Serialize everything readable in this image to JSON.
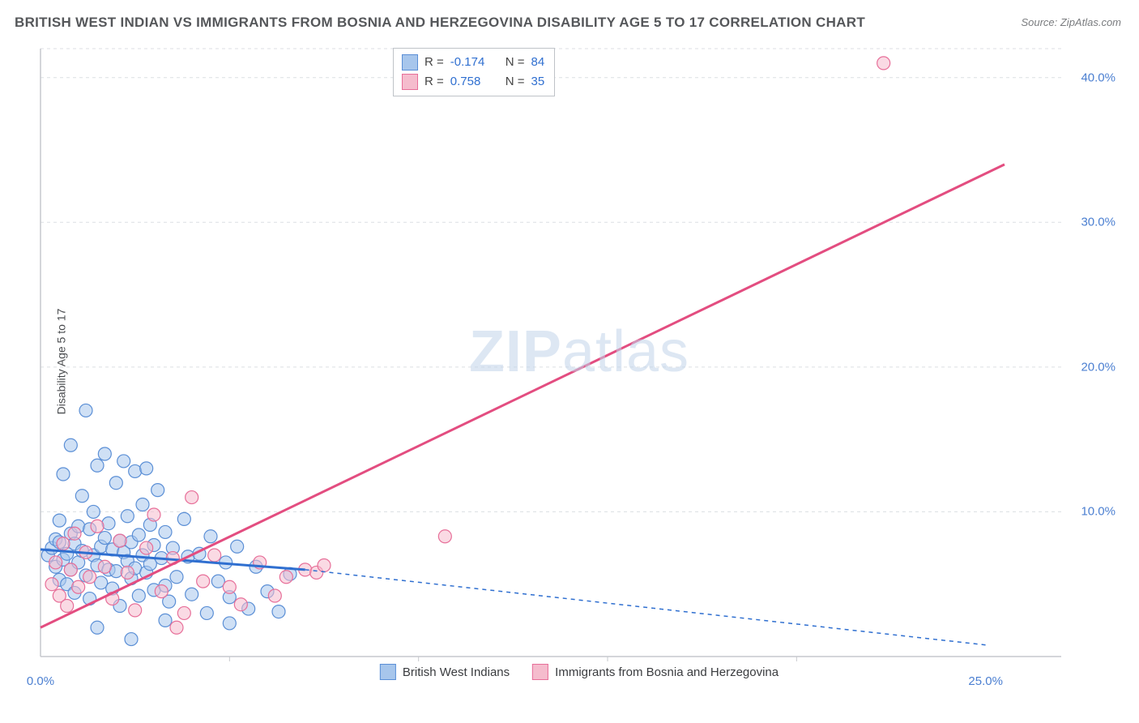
{
  "title": "BRITISH WEST INDIAN VS IMMIGRANTS FROM BOSNIA AND HERZEGOVINA DISABILITY AGE 5 TO 17 CORRELATION CHART",
  "source": "Source: ZipAtlas.com",
  "yaxis_label": "Disability Age 5 to 17",
  "watermark_a": "ZIP",
  "watermark_b": "atlas",
  "chart": {
    "type": "scatter",
    "xlim": [
      0,
      27
    ],
    "ylim": [
      0,
      42
    ],
    "xtick_positions": [
      0,
      25
    ],
    "xtick_labels": [
      "0.0%",
      "25.0%"
    ],
    "ytick_positions": [
      10,
      20,
      30,
      40
    ],
    "ytick_labels": [
      "10.0%",
      "20.0%",
      "30.0%",
      "40.0%"
    ],
    "xtick_minor": [
      5,
      10,
      15,
      20
    ],
    "background_color": "#ffffff",
    "grid_color": "#dcdfe3",
    "axis_color": "#c6c9cd",
    "marker_radius": 8,
    "marker_opacity": 0.55,
    "series": [
      {
        "name": "British West Indians",
        "label": "British West Indians",
        "color_fill": "#a7c6ec",
        "color_stroke": "#5b8fd6",
        "R": "-0.174",
        "N": "84",
        "trend": {
          "x1": 0,
          "y1": 7.4,
          "x2": 7,
          "y2": 6.0,
          "extend_x2": 25,
          "extend_y2": 0.8,
          "color": "#2f6fd0",
          "width": 3,
          "dash_extend": "5,5"
        },
        "points": [
          [
            0.2,
            7.0
          ],
          [
            0.3,
            7.5
          ],
          [
            0.4,
            6.2
          ],
          [
            0.4,
            8.1
          ],
          [
            0.5,
            9.4
          ],
          [
            0.5,
            5.3
          ],
          [
            0.5,
            7.9
          ],
          [
            0.6,
            6.7
          ],
          [
            0.6,
            12.6
          ],
          [
            0.7,
            7.1
          ],
          [
            0.7,
            5.0
          ],
          [
            0.8,
            8.5
          ],
          [
            0.8,
            6.0
          ],
          [
            0.8,
            14.6
          ],
          [
            0.9,
            7.8
          ],
          [
            0.9,
            4.4
          ],
          [
            1.0,
            9.0
          ],
          [
            1.0,
            6.5
          ],
          [
            1.1,
            11.1
          ],
          [
            1.1,
            7.3
          ],
          [
            1.2,
            17.0
          ],
          [
            1.2,
            5.6
          ],
          [
            1.3,
            8.8
          ],
          [
            1.3,
            4.0
          ],
          [
            1.4,
            7.0
          ],
          [
            1.4,
            10.0
          ],
          [
            1.5,
            6.3
          ],
          [
            1.5,
            13.2
          ],
          [
            1.6,
            7.6
          ],
          [
            1.6,
            5.1
          ],
          [
            1.7,
            8.2
          ],
          [
            1.7,
            14.0
          ],
          [
            1.8,
            6.0
          ],
          [
            1.8,
            9.2
          ],
          [
            1.9,
            4.7
          ],
          [
            1.9,
            7.4
          ],
          [
            2.0,
            12.0
          ],
          [
            2.0,
            5.9
          ],
          [
            2.1,
            8.0
          ],
          [
            2.1,
            3.5
          ],
          [
            2.2,
            7.2
          ],
          [
            2.2,
            13.5
          ],
          [
            2.3,
            6.6
          ],
          [
            2.3,
            9.7
          ],
          [
            2.4,
            5.4
          ],
          [
            2.4,
            7.9
          ],
          [
            2.5,
            12.8
          ],
          [
            2.5,
            6.1
          ],
          [
            2.6,
            8.4
          ],
          [
            2.6,
            4.2
          ],
          [
            2.7,
            10.5
          ],
          [
            2.7,
            7.0
          ],
          [
            2.8,
            5.8
          ],
          [
            2.8,
            13.0
          ],
          [
            2.9,
            6.4
          ],
          [
            2.9,
            9.1
          ],
          [
            3.0,
            4.6
          ],
          [
            3.0,
            7.7
          ],
          [
            3.1,
            11.5
          ],
          [
            3.2,
            6.8
          ],
          [
            3.3,
            4.9
          ],
          [
            3.3,
            8.6
          ],
          [
            3.4,
            3.8
          ],
          [
            3.5,
            7.5
          ],
          [
            3.6,
            5.5
          ],
          [
            3.8,
            9.5
          ],
          [
            3.9,
            6.9
          ],
          [
            4.0,
            4.3
          ],
          [
            4.2,
            7.1
          ],
          [
            4.4,
            3.0
          ],
          [
            4.5,
            8.3
          ],
          [
            4.7,
            5.2
          ],
          [
            4.9,
            6.5
          ],
          [
            5.0,
            4.1
          ],
          [
            5.2,
            7.6
          ],
          [
            5.5,
            3.3
          ],
          [
            5.7,
            6.2
          ],
          [
            6.0,
            4.5
          ],
          [
            6.3,
            3.1
          ],
          [
            6.6,
            5.7
          ],
          [
            2.4,
            1.2
          ],
          [
            3.3,
            2.5
          ],
          [
            1.5,
            2.0
          ],
          [
            5.0,
            2.3
          ]
        ]
      },
      {
        "name": "Immigrants from Bosnia and Herzegovina",
        "label": "Immigrants from Bosnia and Herzegovina",
        "color_fill": "#f5bccd",
        "color_stroke": "#e76f99",
        "R": "0.758",
        "N": "35",
        "trend": {
          "x1": 0,
          "y1": 2.0,
          "x2": 25.5,
          "y2": 34.0,
          "color": "#e34d80",
          "width": 3
        },
        "points": [
          [
            0.3,
            5.0
          ],
          [
            0.4,
            6.5
          ],
          [
            0.5,
            4.2
          ],
          [
            0.6,
            7.8
          ],
          [
            0.7,
            3.5
          ],
          [
            0.8,
            6.0
          ],
          [
            0.9,
            8.5
          ],
          [
            1.0,
            4.8
          ],
          [
            1.2,
            7.2
          ],
          [
            1.3,
            5.5
          ],
          [
            1.5,
            9.0
          ],
          [
            1.7,
            6.2
          ],
          [
            1.9,
            4.0
          ],
          [
            2.1,
            8.0
          ],
          [
            2.3,
            5.8
          ],
          [
            2.5,
            3.2
          ],
          [
            2.8,
            7.5
          ],
          [
            3.0,
            9.8
          ],
          [
            3.2,
            4.5
          ],
          [
            3.5,
            6.8
          ],
          [
            3.8,
            3.0
          ],
          [
            4.0,
            11.0
          ],
          [
            4.3,
            5.2
          ],
          [
            4.6,
            7.0
          ],
          [
            5.0,
            4.8
          ],
          [
            5.3,
            3.6
          ],
          [
            5.8,
            6.5
          ],
          [
            6.2,
            4.2
          ],
          [
            6.5,
            5.5
          ],
          [
            7.0,
            6.0
          ],
          [
            7.3,
            5.8
          ],
          [
            7.5,
            6.3
          ],
          [
            10.7,
            8.3
          ],
          [
            22.3,
            41.0
          ],
          [
            3.6,
            2.0
          ]
        ]
      }
    ]
  },
  "stat_label_R": "R =",
  "stat_label_N": "N =",
  "stat_value_color": "#2f6fd0",
  "title_color": "#55575a",
  "source_color": "#7a7c7f",
  "tick_color": "#4b7fd1"
}
